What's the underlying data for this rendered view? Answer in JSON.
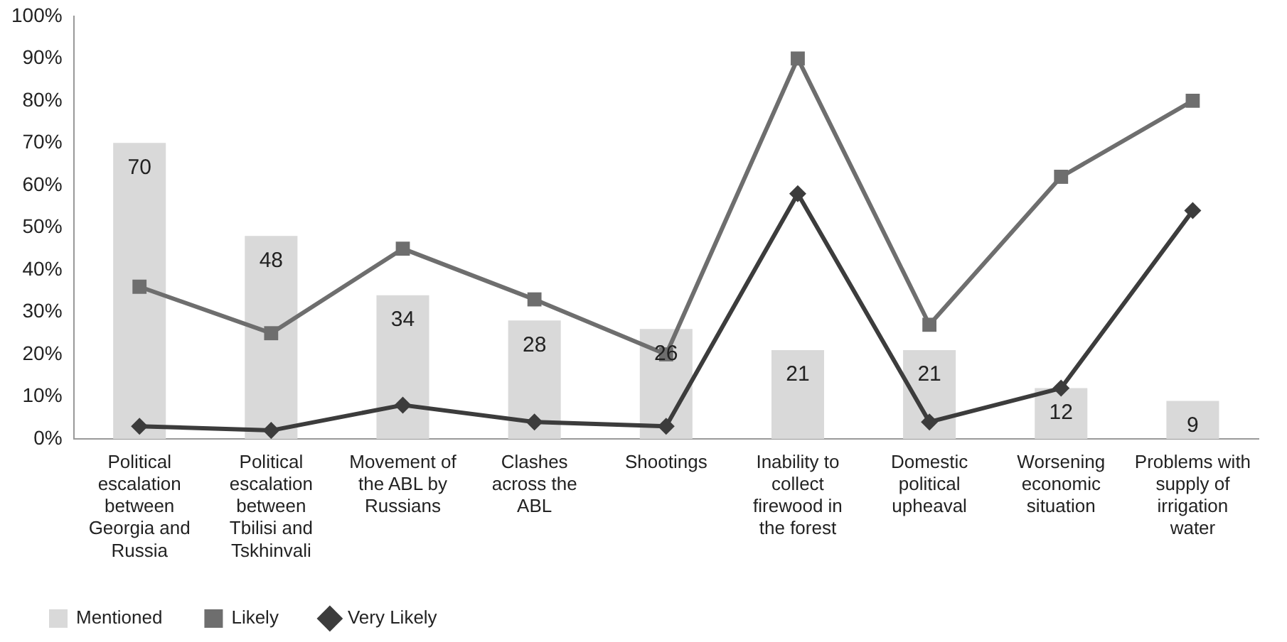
{
  "chart_data": {
    "type": "bar",
    "categories": [
      "Political escalation between Georgia and Russia",
      "Political escalation between Tbilisi and Tskhinvali",
      "Movement of the ABL by Russians",
      "Clashes across the ABL",
      "Shootings",
      "Inability to collect firewood in the forest",
      "Domestic political upheaval",
      "Worsening economic situation",
      "Problems with supply of irrigation water"
    ],
    "series": [
      {
        "name": "Mentioned",
        "color": "#d9d9d9",
        "values": [
          70,
          48,
          34,
          28,
          26,
          21,
          21,
          12,
          9
        ],
        "value_labels": [
          "70",
          "48",
          "34",
          "28",
          "26",
          "21",
          "21",
          "12",
          "9"
        ]
      },
      {
        "name": "Likely",
        "type": "line",
        "color": "#6e6e6e",
        "marker": "square",
        "values": [
          36,
          25,
          45,
          33,
          20,
          90,
          27,
          62,
          80
        ]
      },
      {
        "name": "Very Likely",
        "type": "line",
        "color": "#3c3c3c",
        "marker": "diamond",
        "values": [
          3,
          2,
          8,
          4,
          3,
          58,
          4,
          12,
          54
        ]
      }
    ],
    "ylim": [
      0,
      100
    ],
    "yticks": [
      {
        "value": 0,
        "label": "0%"
      },
      {
        "value": 10,
        "label": "10%"
      },
      {
        "value": 20,
        "label": "20%"
      },
      {
        "value": 30,
        "label": "30%"
      },
      {
        "value": 40,
        "label": "40%"
      },
      {
        "value": 50,
        "label": "50%"
      },
      {
        "value": 60,
        "label": "60%"
      },
      {
        "value": 70,
        "label": "70%"
      },
      {
        "value": 80,
        "label": "80%"
      },
      {
        "value": 90,
        "label": "90%"
      },
      {
        "value": 100,
        "label": "100%"
      }
    ],
    "grid": false,
    "legend": "bottom left"
  }
}
